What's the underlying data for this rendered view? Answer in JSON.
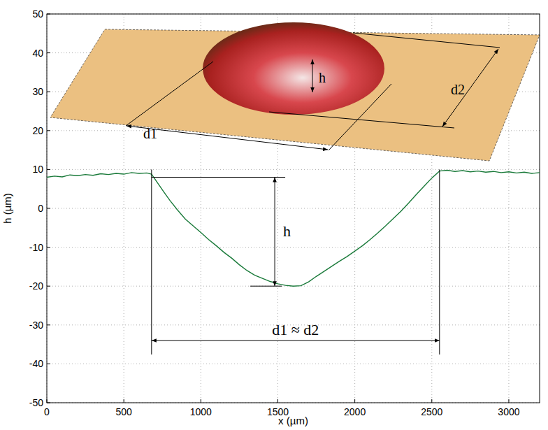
{
  "chart_data": {
    "type": "line",
    "x_label": "x (µm)",
    "y_label": "h (µm)",
    "x": [
      0,
      50,
      100,
      150,
      200,
      250,
      300,
      350,
      400,
      450,
      500,
      550,
      600,
      650,
      680,
      720,
      760,
      800,
      850,
      900,
      950,
      1000,
      1050,
      1100,
      1150,
      1200,
      1250,
      1300,
      1350,
      1400,
      1450,
      1500,
      1550,
      1600,
      1650,
      1700,
      1750,
      1800,
      1850,
      1900,
      1950,
      2000,
      2050,
      2100,
      2150,
      2200,
      2250,
      2300,
      2350,
      2400,
      2450,
      2500,
      2550,
      2600,
      2650,
      2700,
      2750,
      2800,
      2850,
      2900,
      2950,
      3000,
      3050,
      3100,
      3150,
      3200
    ],
    "values": [
      8,
      8.3,
      8.1,
      8.6,
      8.4,
      8.7,
      8.5,
      8.9,
      8.7,
      9.0,
      8.8,
      9.2,
      9.0,
      9.1,
      8.8,
      6.5,
      4.2,
      2.0,
      -0.5,
      -2.8,
      -4.5,
      -6.2,
      -8.0,
      -9.6,
      -11.3,
      -12.8,
      -14.5,
      -16.0,
      -17.2,
      -18.0,
      -18.8,
      -19.4,
      -19.8,
      -20.0,
      -19.9,
      -18.9,
      -17.5,
      -16.2,
      -14.9,
      -13.6,
      -12.4,
      -11.0,
      -9.6,
      -8.0,
      -6.3,
      -4.5,
      -2.6,
      -0.7,
      1.4,
      3.6,
      5.7,
      7.8,
      9.6,
      9.8,
      9.5,
      9.7,
      9.4,
      9.6,
      9.3,
      9.5,
      9.2,
      9.4,
      9.1,
      9.3,
      9.0,
      9.2
    ],
    "color": "#1a7a3a",
    "xlim": [
      0,
      3200
    ],
    "ylim": [
      -50,
      50
    ],
    "xticks": [
      0,
      500,
      1000,
      1500,
      2000,
      2500,
      3000
    ],
    "yticks": [
      -50,
      -40,
      -30,
      -20,
      -10,
      0,
      10,
      20,
      30,
      40,
      50
    ],
    "grid": true,
    "annotations": [
      {
        "text": "h",
        "x": 1480,
        "y": [
          8,
          -20
        ]
      },
      {
        "text": "d1 ≈ d2",
        "x": [
          680,
          2550
        ],
        "y": -34
      }
    ],
    "inset_labels": [
      "h",
      "d1",
      "d2"
    ]
  }
}
